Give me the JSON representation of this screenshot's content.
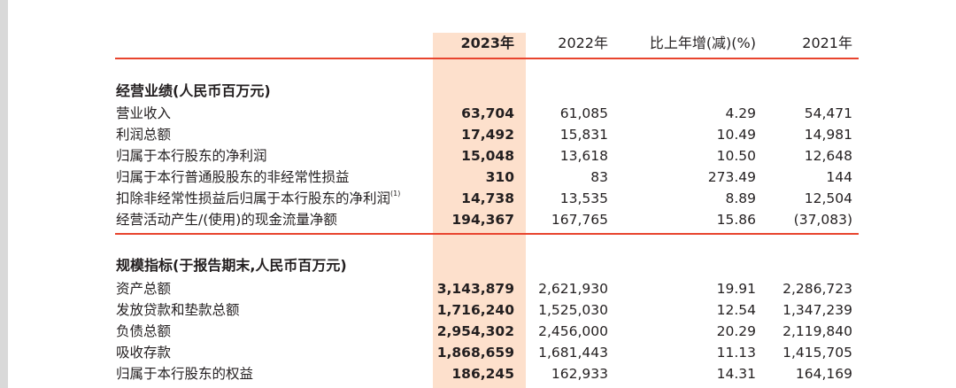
{
  "header": {
    "y2023": "2023年",
    "y2022": "2022年",
    "change": "比上年增(减)(%)",
    "y2021": "2021年"
  },
  "section1": {
    "title": "经营业绩(人民币百万元)",
    "rows": [
      {
        "label": "营业收入",
        "note": "",
        "y2023": "63,704",
        "y2022": "61,085",
        "change": "4.29",
        "y2021": "54,471"
      },
      {
        "label": "利润总额",
        "note": "",
        "y2023": "17,492",
        "y2022": "15,831",
        "change": "10.49",
        "y2021": "14,981"
      },
      {
        "label": "归属于本行股东的净利润",
        "note": "",
        "y2023": "15,048",
        "y2022": "13,618",
        "change": "10.50",
        "y2021": "12,648"
      },
      {
        "label": "归属于本行普通股股东的非经常性损益",
        "note": "",
        "y2023": "310",
        "y2022": "83",
        "change": "273.49",
        "y2021": "144"
      },
      {
        "label": "扣除非经常性损益后归属于本行股东的净利润",
        "note": "(1)",
        "y2023": "14,738",
        "y2022": "13,535",
        "change": "8.89",
        "y2021": "12,504"
      },
      {
        "label": "经营活动产生/(使用)的现金流量净额",
        "note": "",
        "y2023": "194,367",
        "y2022": "167,765",
        "change": "15.86",
        "y2021": "(37,083)"
      }
    ]
  },
  "section2": {
    "title": "规模指标(于报告期末,人民币百万元)",
    "rows": [
      {
        "label": "资产总额",
        "note": "",
        "y2023": "3,143,879",
        "y2022": "2,621,930",
        "change": "19.91",
        "y2021": "2,286,723"
      },
      {
        "label": "发放贷款和垫款总额",
        "note": "",
        "y2023": "1,716,240",
        "y2022": "1,525,030",
        "change": "12.54",
        "y2021": "1,347,239"
      },
      {
        "label": "负债总额",
        "note": "",
        "y2023": "2,954,302",
        "y2022": "2,456,000",
        "change": "20.29",
        "y2021": "2,119,840"
      },
      {
        "label": "吸收存款",
        "note": "",
        "y2023": "1,868,659",
        "y2022": "1,681,443",
        "change": "11.13",
        "y2021": "1,415,705"
      },
      {
        "label": "归属于本行股东的权益",
        "note": "",
        "y2023": "186,245",
        "y2022": "162,933",
        "change": "14.31",
        "y2021": "164,169"
      }
    ]
  }
}
